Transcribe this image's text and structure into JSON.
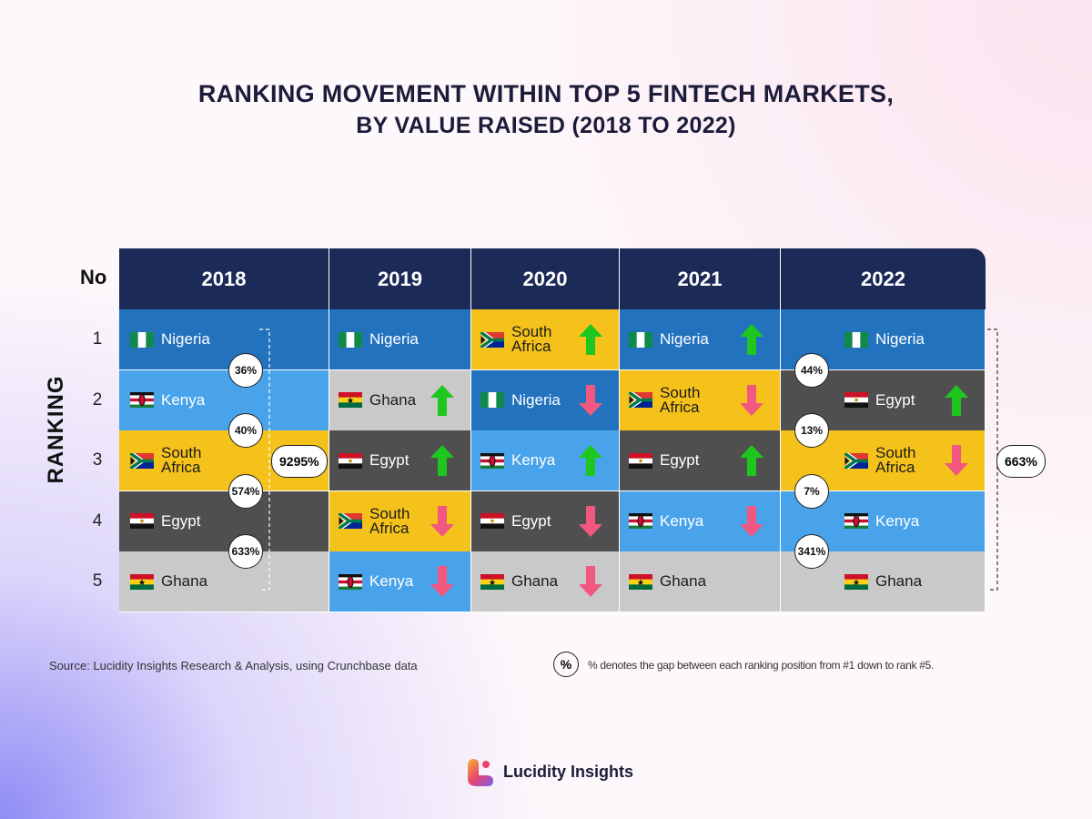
{
  "header": {
    "title": "RANKING MOVEMENT WITHIN TOP 5 FINTECH MARKETS,",
    "subtitle": "BY VALUE RAISED (2018 TO 2022)"
  },
  "table": {
    "rank_header": "No",
    "axis_label": "RANKING",
    "ranks": [
      1,
      2,
      3,
      4,
      5
    ],
    "columns": [
      {
        "year": "2018",
        "cells": [
          {
            "country": "Nigeria"
          },
          {
            "country": "Kenya"
          },
          {
            "country": "South Africa"
          },
          {
            "country": "Egypt"
          },
          {
            "country": "Ghana"
          }
        ],
        "gaps": [
          "36%",
          "40%",
          "574%",
          "633%"
        ],
        "total_gap": "9295%"
      },
      {
        "year": "2019",
        "cells": [
          {
            "country": "Nigeria"
          },
          {
            "country": "Ghana",
            "trend": "up"
          },
          {
            "country": "Egypt",
            "trend": "up"
          },
          {
            "country": "South Africa",
            "trend": "down"
          },
          {
            "country": "Kenya",
            "trend": "down"
          }
        ]
      },
      {
        "year": "2020",
        "cells": [
          {
            "country": "South Africa",
            "trend": "up"
          },
          {
            "country": "Nigeria",
            "trend": "down"
          },
          {
            "country": "Kenya",
            "trend": "up"
          },
          {
            "country": "Egypt",
            "trend": "down"
          },
          {
            "country": "Ghana",
            "trend": "down"
          }
        ]
      },
      {
        "year": "2021",
        "cells": [
          {
            "country": "Nigeria",
            "trend": "up"
          },
          {
            "country": "South Africa",
            "trend": "down"
          },
          {
            "country": "Egypt",
            "trend": "up"
          },
          {
            "country": "Kenya",
            "trend": "down"
          },
          {
            "country": "Ghana"
          }
        ]
      },
      {
        "year": "2022",
        "cells": [
          {
            "country": "Nigeria"
          },
          {
            "country": "Egypt",
            "trend": "up"
          },
          {
            "country": "South Africa",
            "trend": "down"
          },
          {
            "country": "Kenya"
          },
          {
            "country": "Ghana"
          }
        ],
        "gaps": [
          "44%",
          "13%",
          "7%",
          "341%"
        ],
        "total_gap": "663%"
      }
    ],
    "country_colors": {
      "Nigeria": "#2272bd",
      "Kenya": "#49a3eb",
      "South Africa": "#f5c21b",
      "Egypt": "#4f4f4f",
      "Ghana": "#c9c9c9"
    }
  },
  "footer": {
    "source": "Source: Lucidity Insights Research & Analysis, using Crunchbase data",
    "legend_symbol": "%",
    "legend_text": "% denotes the gap between each ranking position from #1 down to rank #5."
  },
  "brand": "Lucidity Insights"
}
